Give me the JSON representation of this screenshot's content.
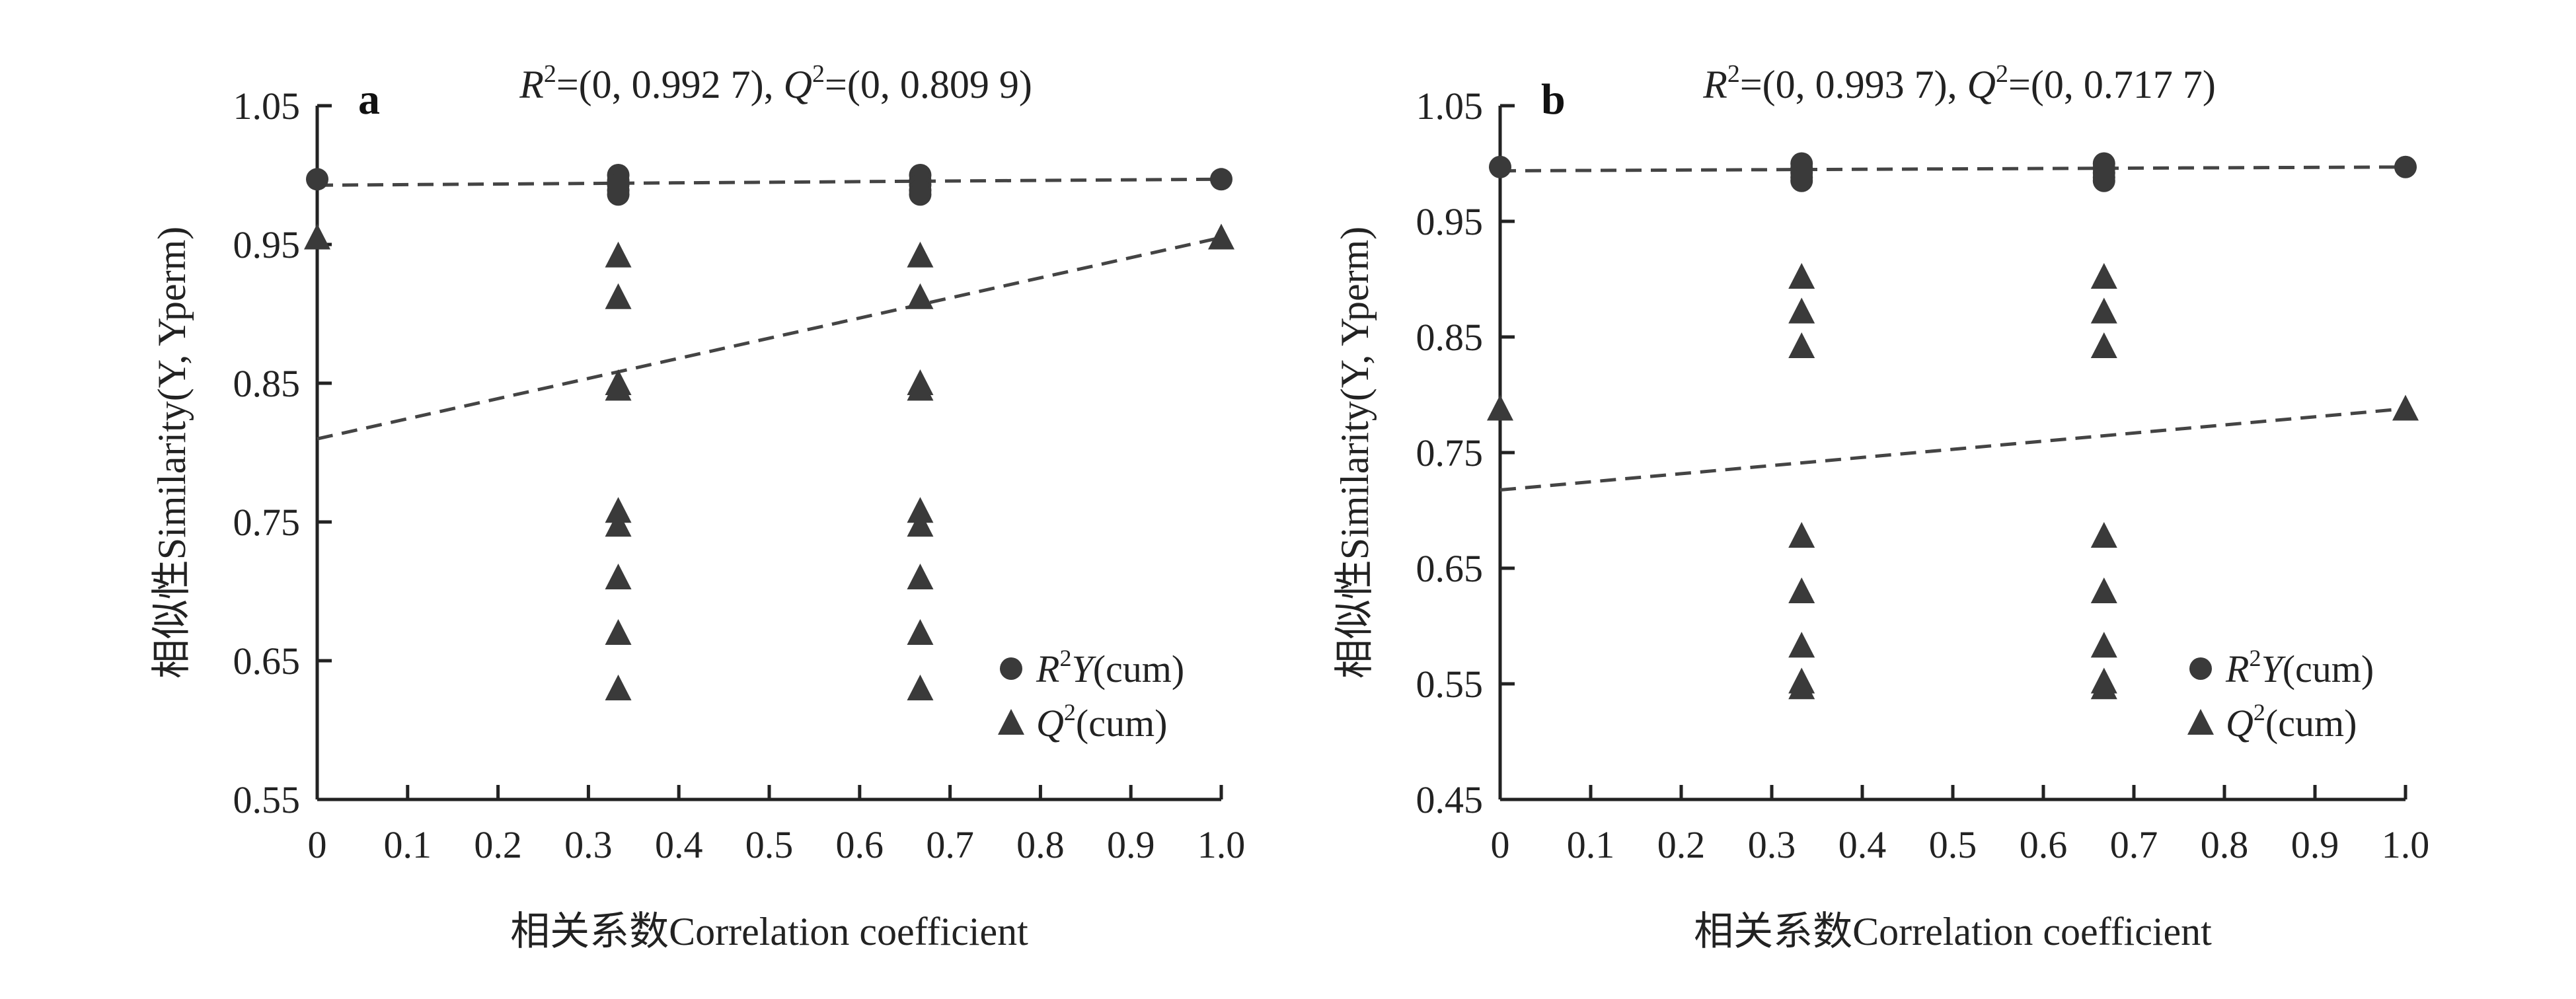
{
  "chart_data": [
    {
      "type": "scatter",
      "panel_label": "a",
      "annotation": {
        "r2_sym": "R",
        "r2_sup": "2",
        "r2_val": "=(0, 0.992 7),",
        "q2_sym": "Q",
        "q2_sup": "2",
        "q2_val": "=(0, 0.809 9)"
      },
      "xlabel": "相关系数Correlation coefficient",
      "ylabel": "相似性Similarity(Y, Yperm)",
      "xlim": [
        0,
        1.0
      ],
      "ylim": [
        0.55,
        1.05
      ],
      "xticks": [
        0,
        0.1,
        0.2,
        0.3,
        0.4,
        0.5,
        0.6,
        0.7,
        0.8,
        0.9,
        1.0
      ],
      "xtick_labels": [
        "0",
        "0.1",
        "0.2",
        "0.3",
        "0.4",
        "0.5",
        "0.6",
        "0.7",
        "0.8",
        "0.9",
        "1.0"
      ],
      "yticks": [
        0.55,
        0.65,
        0.75,
        0.85,
        0.95,
        1.05
      ],
      "ytick_labels": [
        "0.55",
        "0.65",
        "0.75",
        "0.85",
        "0.95",
        "1.05"
      ],
      "series": [
        {
          "name": "R2Y(cum)",
          "legend_sym": "R",
          "legend_sup": "2",
          "legend_rest": "Y",
          "legend_suffix": "(cum)",
          "marker": "circle",
          "points": [
            [
              0,
              0.997
            ],
            [
              0.333,
              1.0
            ],
            [
              0.333,
              0.996
            ],
            [
              0.333,
              0.993
            ],
            [
              0.333,
              0.989
            ],
            [
              0.333,
              0.986
            ],
            [
              0.667,
              1.0
            ],
            [
              0.667,
              0.996
            ],
            [
              0.667,
              0.993
            ],
            [
              0.667,
              0.989
            ],
            [
              0.667,
              0.986
            ],
            [
              1.0,
              0.997
            ]
          ],
          "trend": [
            [
              0,
              0.9927
            ],
            [
              1.0,
              0.997
            ]
          ]
        },
        {
          "name": "Q2(cum)",
          "legend_sym": "Q",
          "legend_sup": "2",
          "legend_rest": "",
          "legend_suffix": "(cum)",
          "marker": "triangle",
          "points": [
            [
              0,
              0.955
            ],
            [
              0.333,
              0.942
            ],
            [
              0.333,
              0.912
            ],
            [
              0.333,
              0.85
            ],
            [
              0.333,
              0.846
            ],
            [
              0.333,
              0.758
            ],
            [
              0.333,
              0.748
            ],
            [
              0.333,
              0.71
            ],
            [
              0.333,
              0.67
            ],
            [
              0.333,
              0.63
            ],
            [
              0.667,
              0.942
            ],
            [
              0.667,
              0.912
            ],
            [
              0.667,
              0.85
            ],
            [
              0.667,
              0.846
            ],
            [
              0.667,
              0.758
            ],
            [
              0.667,
              0.748
            ],
            [
              0.667,
              0.71
            ],
            [
              0.667,
              0.67
            ],
            [
              0.667,
              0.63
            ],
            [
              1.0,
              0.955
            ]
          ],
          "trend": [
            [
              0,
              0.8099
            ],
            [
              1.0,
              0.955
            ]
          ]
        }
      ],
      "legend_position": "bottom-right"
    },
    {
      "type": "scatter",
      "panel_label": "b",
      "annotation": {
        "r2_sym": "R",
        "r2_sup": "2",
        "r2_val": "=(0, 0.993 7),",
        "q2_sym": "Q",
        "q2_sup": "2",
        "q2_val": "=(0, 0.717 7)"
      },
      "xlabel": "相关系数Correlation coefficient",
      "ylabel": "相似性Similarity(Y, Yperm)",
      "xlim": [
        0,
        1.0
      ],
      "ylim": [
        0.45,
        1.05
      ],
      "xticks": [
        0,
        0.1,
        0.2,
        0.3,
        0.4,
        0.5,
        0.6,
        0.7,
        0.8,
        0.9,
        1.0
      ],
      "xtick_labels": [
        "0",
        "0.1",
        "0.2",
        "0.3",
        "0.4",
        "0.5",
        "0.6",
        "0.7",
        "0.8",
        "0.9",
        "1.0"
      ],
      "yticks": [
        0.45,
        0.55,
        0.65,
        0.75,
        0.85,
        0.95,
        1.05
      ],
      "ytick_labels": [
        "0.45",
        "0.55",
        "0.65",
        "0.75",
        "0.85",
        "0.95",
        "1.05"
      ],
      "series": [
        {
          "name": "R2Y(cum)",
          "legend_sym": "R",
          "legend_sup": "2",
          "legend_rest": "Y",
          "legend_suffix": "(cum)",
          "marker": "circle",
          "points": [
            [
              0,
              0.997
            ],
            [
              0.333,
              1.0
            ],
            [
              0.333,
              0.996
            ],
            [
              0.333,
              0.992
            ],
            [
              0.333,
              0.988
            ],
            [
              0.333,
              0.985
            ],
            [
              0.667,
              1.0
            ],
            [
              0.667,
              0.996
            ],
            [
              0.667,
              0.992
            ],
            [
              0.667,
              0.988
            ],
            [
              0.667,
              0.985
            ],
            [
              1.0,
              0.997
            ]
          ],
          "trend": [
            [
              0,
              0.9937
            ],
            [
              1.0,
              0.997
            ]
          ]
        },
        {
          "name": "Q2(cum)",
          "legend_sym": "Q",
          "legend_sup": "2",
          "legend_rest": "",
          "legend_suffix": "(cum)",
          "marker": "triangle",
          "points": [
            [
              0,
              0.788
            ],
            [
              0.333,
              0.902
            ],
            [
              0.333,
              0.872
            ],
            [
              0.333,
              0.842
            ],
            [
              0.333,
              0.678
            ],
            [
              0.333,
              0.63
            ],
            [
              0.333,
              0.583
            ],
            [
              0.333,
              0.552
            ],
            [
              0.333,
              0.547
            ],
            [
              0.667,
              0.902
            ],
            [
              0.667,
              0.872
            ],
            [
              0.667,
              0.842
            ],
            [
              0.667,
              0.678
            ],
            [
              0.667,
              0.63
            ],
            [
              0.667,
              0.583
            ],
            [
              0.667,
              0.552
            ],
            [
              0.667,
              0.547
            ],
            [
              1.0,
              0.788
            ]
          ],
          "trend": [
            [
              0,
              0.7177
            ],
            [
              1.0,
              0.788
            ]
          ]
        }
      ],
      "legend_position": "bottom-right"
    }
  ]
}
